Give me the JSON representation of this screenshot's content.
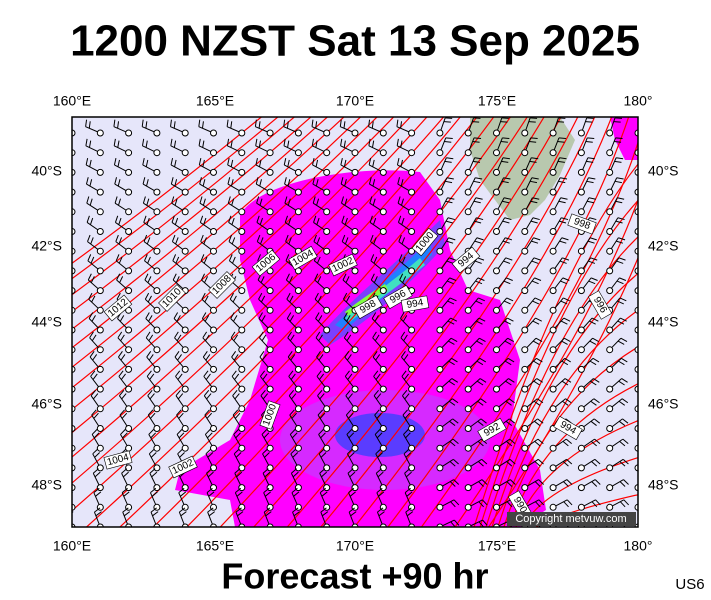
{
  "title": "1200 NZST Sat 13 Sep 2025",
  "footer": "Forecast +90 hr",
  "code": "US6",
  "copyright": "Copyright metvuw.com",
  "lon_labels": [
    "160°E",
    "165°E",
    "170°E",
    "175°E",
    "180°"
  ],
  "lat_labels": [
    "40°S",
    "42°S",
    "44°S",
    "46°S",
    "48°S"
  ],
  "isobar_labels": [
    "1012",
    "1010",
    "1008",
    "1006",
    "1004",
    "1002",
    "1000",
    "998",
    "996",
    "994",
    "994",
    "998",
    "996",
    "994",
    "992",
    "1000",
    "1004",
    "1002",
    "990"
  ]
}
